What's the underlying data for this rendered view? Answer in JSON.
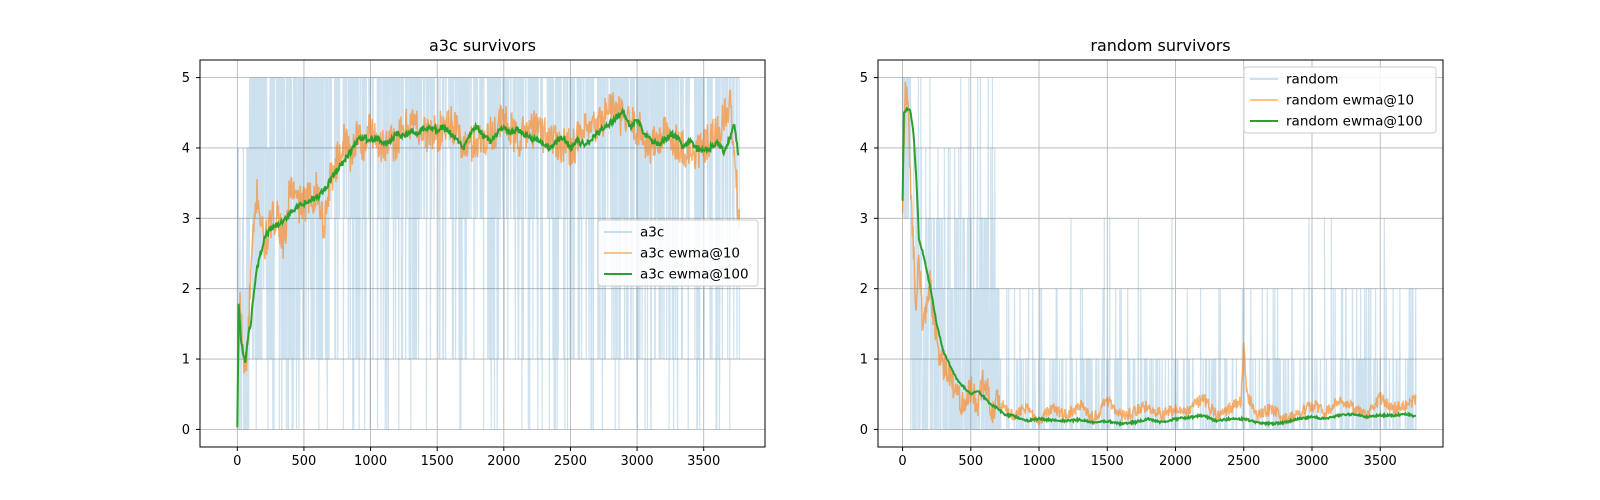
{
  "colors": {
    "raw": "#1f77b4",
    "ewma10": "#ff7f0e",
    "ewma100": "#2ca02c",
    "grid": "#b0b0b0",
    "axes": "#000000"
  },
  "chart_data": [
    {
      "type": "line",
      "title": "a3c survivors",
      "xlabel": "",
      "ylabel": "",
      "xlim": [
        -280,
        3960
      ],
      "ylim": [
        -0.25,
        5.25
      ],
      "x_ticks": [
        0,
        500,
        1000,
        1500,
        2000,
        2500,
        3000,
        3500
      ],
      "y_ticks": [
        0,
        1,
        2,
        3,
        4,
        5
      ],
      "grid": true,
      "legend_position": "center-right",
      "n_points": 3770,
      "series": [
        {
          "name": "a3c",
          "style": "raw",
          "description": "integer survivor counts 0-5 per episode; early episodes mostly 1-4, later mostly 5 with frequent drops to 3, 1 and 0",
          "levels": [
            0,
            1,
            2,
            3,
            4,
            5
          ]
        },
        {
          "name": "a3c ewma@10",
          "style": "ewma10",
          "x": [
            0,
            20,
            50,
            80,
            100,
            150,
            200,
            250,
            300,
            350,
            400,
            450,
            500,
            550,
            600,
            650,
            700,
            750,
            800,
            850,
            900,
            950,
            1000,
            1100,
            1200,
            1300,
            1400,
            1500,
            1600,
            1700,
            1800,
            1900,
            2000,
            2100,
            2200,
            2300,
            2400,
            2500,
            2600,
            2700,
            2800,
            2900,
            3000,
            3100,
            3200,
            3300,
            3400,
            3500,
            3600,
            3700,
            3770
          ],
          "values": [
            0.0,
            1.9,
            0.8,
            1.2,
            2.2,
            3.4,
            2.6,
            2.9,
            3.1,
            2.6,
            3.5,
            3.2,
            3.2,
            3.3,
            3.4,
            2.9,
            3.6,
            3.8,
            4.1,
            3.9,
            4.2,
            4.0,
            4.3,
            4.0,
            4.1,
            4.4,
            4.2,
            4.2,
            4.4,
            4.0,
            4.1,
            4.2,
            4.4,
            4.1,
            4.3,
            4.2,
            4.1,
            4.0,
            4.2,
            4.3,
            4.6,
            4.4,
            4.3,
            4.0,
            4.2,
            4.1,
            3.9,
            4.0,
            4.2,
            4.6,
            2.9
          ]
        },
        {
          "name": "a3c ewma@100",
          "style": "ewma100",
          "x": [
            0,
            10,
            30,
            60,
            80,
            100,
            120,
            150,
            200,
            250,
            300,
            350,
            400,
            450,
            500,
            550,
            600,
            650,
            700,
            750,
            800,
            850,
            900,
            950,
            1000,
            1050,
            1100,
            1150,
            1200,
            1250,
            1300,
            1350,
            1400,
            1450,
            1500,
            1550,
            1600,
            1650,
            1700,
            1750,
            1800,
            1850,
            1900,
            1950,
            2000,
            2050,
            2100,
            2150,
            2200,
            2250,
            2300,
            2350,
            2400,
            2450,
            2500,
            2550,
            2600,
            2650,
            2700,
            2750,
            2800,
            2850,
            2900,
            2950,
            3000,
            3050,
            3100,
            3150,
            3200,
            3250,
            3300,
            3350,
            3400,
            3450,
            3500,
            3550,
            3600,
            3650,
            3700,
            3730,
            3760
          ],
          "values": [
            0.0,
            1.8,
            1.2,
            0.95,
            1.3,
            1.5,
            1.9,
            2.3,
            2.7,
            2.85,
            2.9,
            2.95,
            3.1,
            3.15,
            3.2,
            3.25,
            3.3,
            3.4,
            3.55,
            3.7,
            3.8,
            3.95,
            4.1,
            4.15,
            4.1,
            4.15,
            4.05,
            4.1,
            4.2,
            4.15,
            4.25,
            4.2,
            4.3,
            4.3,
            4.25,
            4.3,
            4.2,
            4.1,
            4.0,
            4.2,
            4.3,
            4.15,
            4.1,
            4.2,
            4.3,
            4.2,
            4.25,
            4.2,
            4.15,
            4.1,
            4.05,
            4.0,
            4.1,
            4.15,
            4.0,
            4.1,
            4.05,
            4.1,
            4.2,
            4.3,
            4.35,
            4.45,
            4.5,
            4.3,
            4.4,
            4.2,
            4.15,
            4.05,
            4.1,
            4.2,
            4.15,
            4.0,
            4.1,
            4.0,
            3.95,
            4.0,
            4.1,
            3.95,
            4.15,
            4.35,
            3.9
          ]
        }
      ]
    },
    {
      "type": "line",
      "title": "random survivors",
      "xlabel": "",
      "ylabel": "",
      "xlim": [
        -180,
        3960
      ],
      "ylim": [
        -0.25,
        5.25
      ],
      "x_ticks": [
        0,
        500,
        1000,
        1500,
        2000,
        2500,
        3000,
        3500
      ],
      "y_ticks": [
        0,
        1,
        2,
        3,
        4,
        5
      ],
      "grid": true,
      "legend_position": "top-right",
      "n_points": 3770,
      "series": [
        {
          "name": "random",
          "style": "raw",
          "description": "integer survivor counts; first ~60 episodes mostly 4-5, then mostly 0 with frequent 1 and 2 spikes, occasional 3 and 4",
          "levels": [
            0,
            1,
            2,
            3,
            4,
            5
          ]
        },
        {
          "name": "random ewma@10",
          "style": "ewma10",
          "x": [
            0,
            20,
            40,
            60,
            80,
            100,
            120,
            150,
            200,
            250,
            300,
            350,
            400,
            450,
            500,
            550,
            600,
            650,
            700,
            800,
            900,
            1000,
            1100,
            1200,
            1300,
            1400,
            1500,
            1600,
            1700,
            1800,
            1900,
            2000,
            2100,
            2200,
            2300,
            2400,
            2480,
            2500,
            2520,
            2600,
            2700,
            2800,
            2900,
            3000,
            3100,
            3200,
            3300,
            3400,
            3500,
            3600,
            3700,
            3760
          ],
          "values": [
            3.1,
            4.9,
            4.6,
            3.4,
            2.6,
            1.7,
            2.5,
            1.4,
            2.1,
            1.2,
            0.9,
            0.7,
            0.5,
            0.4,
            0.6,
            0.3,
            0.8,
            0.2,
            0.4,
            0.2,
            0.3,
            0.15,
            0.3,
            0.2,
            0.35,
            0.15,
            0.4,
            0.2,
            0.25,
            0.35,
            0.2,
            0.3,
            0.25,
            0.45,
            0.2,
            0.3,
            0.4,
            1.3,
            0.5,
            0.2,
            0.3,
            0.15,
            0.2,
            0.35,
            0.25,
            0.4,
            0.3,
            0.2,
            0.45,
            0.3,
            0.35,
            0.4
          ]
        },
        {
          "name": "random ewma@100",
          "style": "ewma100",
          "x": [
            0,
            10,
            30,
            50,
            60,
            80,
            100,
            120,
            150,
            200,
            250,
            300,
            350,
            400,
            450,
            500,
            550,
            600,
            650,
            700,
            750,
            800,
            900,
            1000,
            1100,
            1200,
            1300,
            1400,
            1500,
            1600,
            1700,
            1800,
            1900,
            2000,
            2100,
            2200,
            2300,
            2400,
            2500,
            2600,
            2700,
            2800,
            2900,
            3000,
            3100,
            3200,
            3300,
            3400,
            3500,
            3600,
            3700,
            3760
          ],
          "values": [
            3.25,
            4.5,
            4.55,
            4.55,
            4.5,
            4.2,
            3.6,
            2.7,
            2.5,
            2.05,
            1.5,
            1.1,
            0.9,
            0.7,
            0.6,
            0.5,
            0.55,
            0.45,
            0.35,
            0.3,
            0.2,
            0.2,
            0.12,
            0.15,
            0.13,
            0.12,
            0.14,
            0.1,
            0.12,
            0.08,
            0.1,
            0.15,
            0.1,
            0.15,
            0.17,
            0.2,
            0.12,
            0.15,
            0.15,
            0.1,
            0.08,
            0.1,
            0.15,
            0.18,
            0.15,
            0.2,
            0.22,
            0.18,
            0.2,
            0.2,
            0.22,
            0.18
          ]
        }
      ]
    }
  ]
}
